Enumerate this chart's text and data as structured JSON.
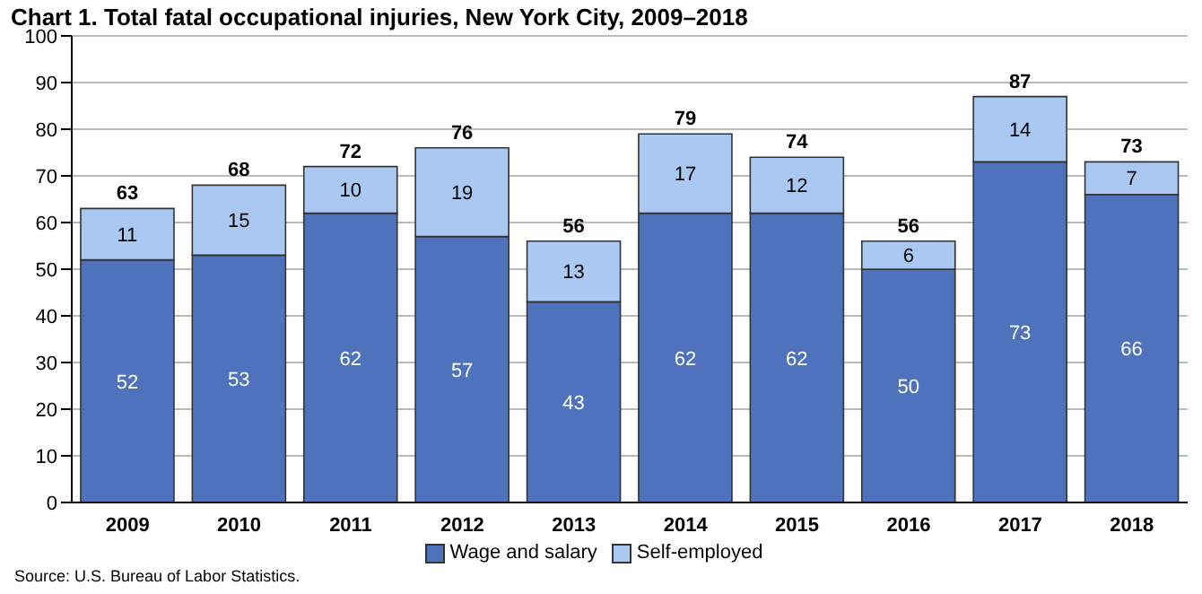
{
  "chart_data": {
    "type": "bar",
    "title": "Chart 1. Total fatal occupational injuries, New York City, 2009–2018",
    "categories": [
      "2009",
      "2010",
      "2011",
      "2012",
      "2013",
      "2014",
      "2015",
      "2016",
      "2017",
      "2018"
    ],
    "series": [
      {
        "name": "Wage and salary",
        "color": "#4f72bd",
        "values": [
          52,
          53,
          62,
          57,
          43,
          62,
          62,
          50,
          73,
          66
        ]
      },
      {
        "name": "Self-employed",
        "color": "#a9c9f2",
        "values": [
          11,
          15,
          10,
          19,
          13,
          17,
          12,
          6,
          14,
          7
        ]
      }
    ],
    "stacked": true,
    "data_labels": true,
    "totals": [
      "63",
      "68",
      "72",
      "76",
      "56",
      "79",
      "74",
      "56",
      "87",
      "73"
    ],
    "ylim": [
      0,
      100
    ],
    "yticks": [
      0,
      10,
      20,
      30,
      40,
      50,
      60,
      70,
      80,
      90,
      100
    ],
    "grid": "y",
    "legend": "bottom",
    "annotations": [
      "Source:  U.S. Bureau of Labor Statistics."
    ]
  }
}
